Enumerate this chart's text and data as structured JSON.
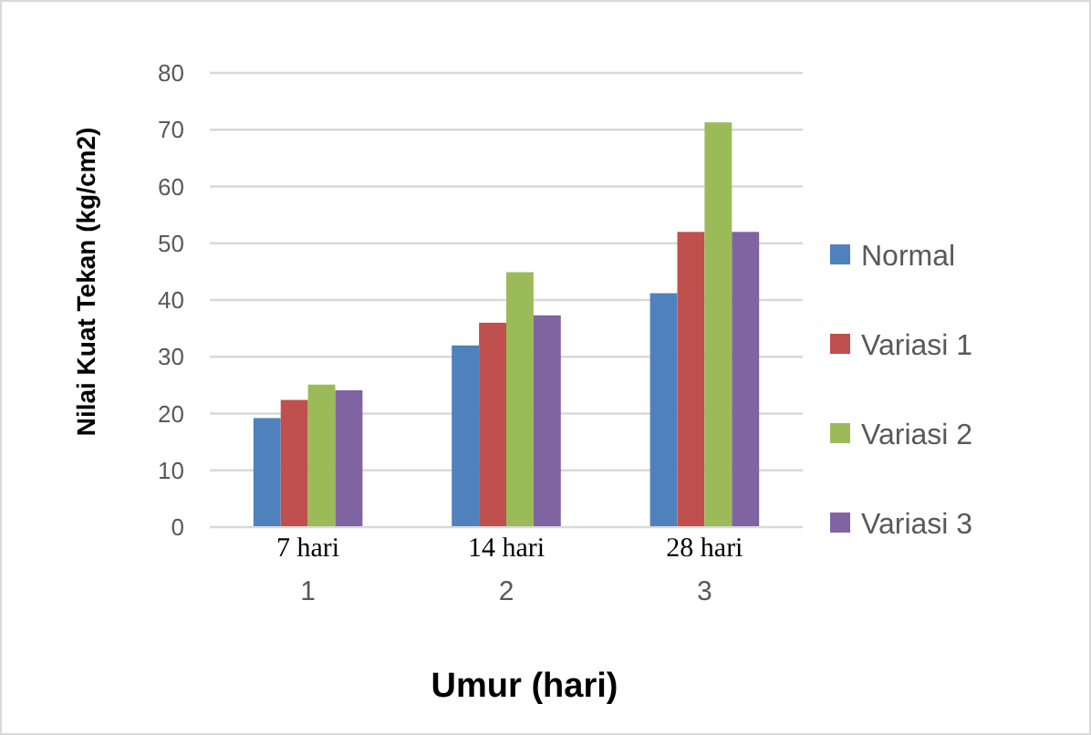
{
  "chart_data": {
    "type": "bar",
    "xlabel": "Umur (hari)",
    "ylabel": "Nilai Kuat Tekan (kg/cm2)",
    "categories": [
      "1",
      "2",
      "3"
    ],
    "series": [
      {
        "name": "Normal",
        "color": "#4f81bd",
        "values": [
          19.2,
          32.0,
          41.2
        ]
      },
      {
        "name": "Variasi 1",
        "color": "#c0504d",
        "values": [
          22.4,
          36.0,
          52.0
        ]
      },
      {
        "name": "Variasi 2",
        "color": "#9bbb59",
        "values": [
          25.1,
          44.9,
          71.3
        ]
      },
      {
        "name": "Variasi 3",
        "color": "#8064a2",
        "values": [
          24.1,
          37.3,
          52.0
        ]
      }
    ],
    "ylim": [
      0,
      80
    ],
    "yticks": [
      0,
      10,
      20,
      30,
      40,
      50,
      60,
      70,
      80
    ],
    "grid": "y",
    "legend": "right",
    "annotations": [
      "7 hari",
      "14 hari",
      "28 hari"
    ]
  }
}
